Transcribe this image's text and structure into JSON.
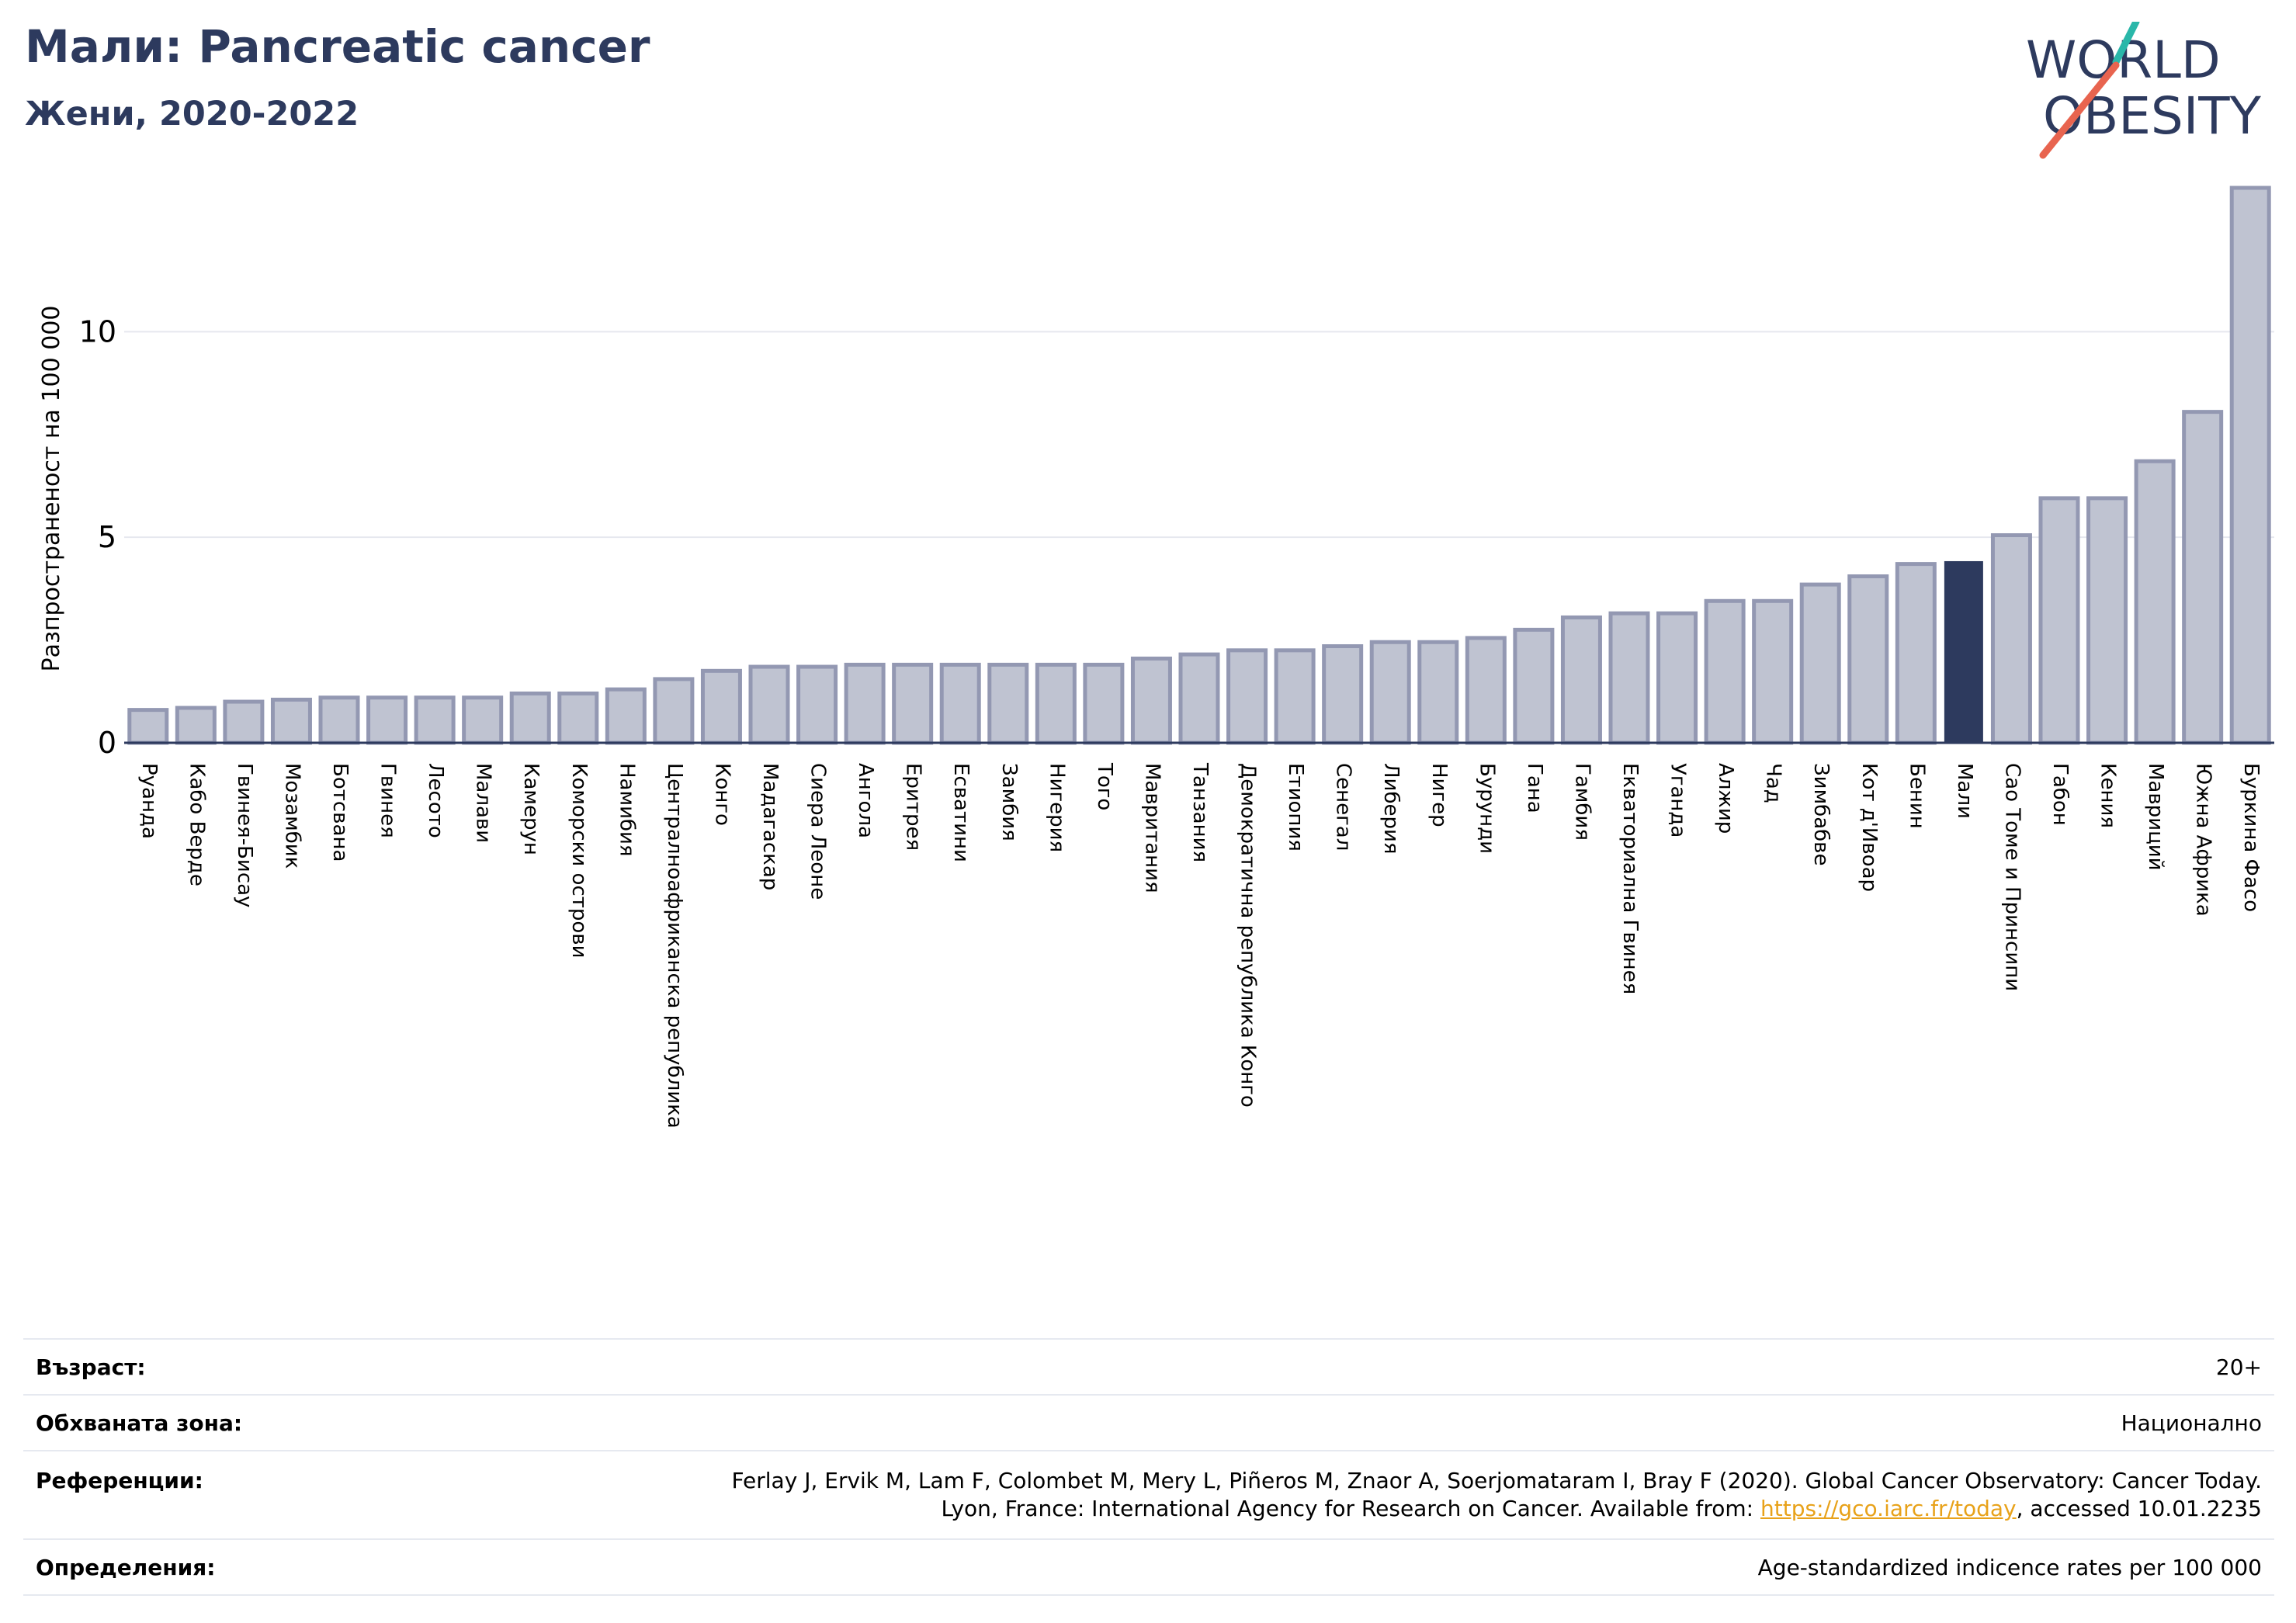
{
  "header": {
    "title": "Мали: Pancreatic cancer",
    "subtitle": "Жени, 2020-2022"
  },
  "logo": {
    "line1": "WORLD",
    "line2": "OBESITY"
  },
  "colors": {
    "bar": "#bfc3d1",
    "bar_edge": "#9398b2",
    "highlight": "#2d3a5e",
    "axis": "#2d3a5e",
    "grid": "#e6e8ef"
  },
  "chart_data": {
    "type": "bar",
    "title": "Мали: Pancreatic cancer",
    "subtitle": "Жени, 2020-2022",
    "ylabel": "Разпространеност  на 100 000",
    "xlabel": "",
    "ylim": [
      0,
      13.5
    ],
    "yticks": [
      0,
      5,
      10
    ],
    "grid": true,
    "highlight": "Мали",
    "categories": [
      "Руанда",
      "Кабо Верде",
      "Гвинея-Бисау",
      "Мозамбик",
      "Ботсвана",
      "Гвинея",
      "Лесото",
      "Малави",
      "Камерун",
      "Коморски острови",
      "Намибия",
      "Централноафриканска република",
      "Конго",
      "Мадагаскар",
      "Сиера Леоне",
      "Ангола",
      "Еритрея",
      "Есватини",
      "Замбия",
      "Нигерия",
      "Того",
      "Мавритания",
      "Танзания",
      "Демократична република Конго",
      "Етиопия",
      "Сенегал",
      "Либерия",
      "Нигер",
      "Бурунди",
      "Гана",
      "Гамбия",
      "Екваториална Гвинея",
      "Уганда",
      "Алжир",
      "Чад",
      "Зимбабве",
      "Кот д'Ивоар",
      "Бенин",
      "Мали",
      "Сао Томе и Принсипи",
      "Габон",
      "Кения",
      "Мавриций",
      "Южна Африка",
      "Буркина Фасо"
    ],
    "values": [
      0.8,
      0.85,
      1.0,
      1.05,
      1.1,
      1.1,
      1.1,
      1.1,
      1.2,
      1.2,
      1.3,
      1.55,
      1.75,
      1.85,
      1.85,
      1.9,
      1.9,
      1.9,
      1.9,
      1.9,
      1.9,
      2.05,
      2.15,
      2.25,
      2.25,
      2.35,
      2.45,
      2.45,
      2.55,
      2.75,
      3.05,
      3.15,
      3.15,
      3.45,
      3.45,
      3.85,
      4.05,
      4.35,
      4.4,
      5.05,
      5.95,
      5.95,
      6.85,
      8.05,
      13.5
    ]
  },
  "info": {
    "age_label": "Възраст:",
    "age_value": "20+",
    "zone_label": "Обхваната зона:",
    "zone_value": "Национално",
    "ref_label": "Референции:",
    "ref_line1": "Ferlay J, Ervik M, Lam F, Colombet M, Mery L, Piñeros M, Znaor A, Soerjomataram I, Bray F (2020). Global Cancer Observatory: Cancer Today.",
    "ref_line2_prefix": "Lyon, France: International Agency for Research on Cancer. Available from: ",
    "ref_link": "https://gco.iarc.fr/today",
    "ref_line2_suffix": ", accessed 10.01.2235",
    "def_label": "Определения:",
    "def_value": "Age-standardized indicence rates per 100 000"
  }
}
